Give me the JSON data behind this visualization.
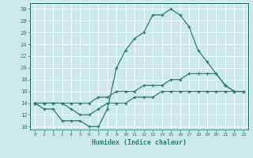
{
  "xlabel": "Humidex (Indice chaleur)",
  "xlim": [
    -0.5,
    23.5
  ],
  "ylim": [
    9.5,
    31
  ],
  "yticks": [
    10,
    12,
    14,
    16,
    18,
    20,
    22,
    24,
    26,
    28,
    30
  ],
  "xticks": [
    0,
    1,
    2,
    3,
    4,
    5,
    6,
    7,
    8,
    9,
    10,
    11,
    12,
    13,
    14,
    15,
    16,
    17,
    18,
    19,
    20,
    21,
    22,
    23
  ],
  "bg_color": "#cce8e8",
  "line_color": "#2e7d6e",
  "grid_color": "#ffffff",
  "lines": [
    {
      "x": [
        0,
        1,
        2,
        3,
        4,
        5,
        6,
        7,
        8,
        9,
        10,
        11,
        12,
        13,
        14,
        15,
        16,
        17,
        18,
        19,
        20,
        21,
        22,
        23
      ],
      "y": [
        14,
        13,
        13,
        11,
        11,
        11,
        10,
        10,
        13,
        20,
        23,
        25,
        26,
        29,
        29,
        30,
        29,
        27,
        23,
        21,
        19,
        17,
        16,
        16
      ]
    },
    {
      "x": [
        0,
        1,
        2,
        3,
        4,
        5,
        6,
        7,
        8,
        9,
        10,
        11,
        12,
        13,
        14,
        15,
        16,
        17,
        18,
        19,
        20,
        21,
        22,
        23
      ],
      "y": [
        14,
        14,
        14,
        14,
        14,
        14,
        14,
        15,
        15,
        16,
        16,
        16,
        17,
        17,
        17,
        18,
        18,
        19,
        19,
        19,
        19,
        17,
        16,
        16
      ]
    },
    {
      "x": [
        0,
        1,
        2,
        3,
        4,
        5,
        6,
        7,
        8,
        9,
        10,
        11,
        12,
        13,
        14,
        15,
        16,
        17,
        18,
        19,
        20,
        21,
        22,
        23
      ],
      "y": [
        14,
        14,
        14,
        14,
        13,
        12,
        12,
        13,
        14,
        14,
        14,
        15,
        15,
        15,
        16,
        16,
        16,
        16,
        16,
        16,
        16,
        16,
        16,
        16
      ]
    }
  ]
}
